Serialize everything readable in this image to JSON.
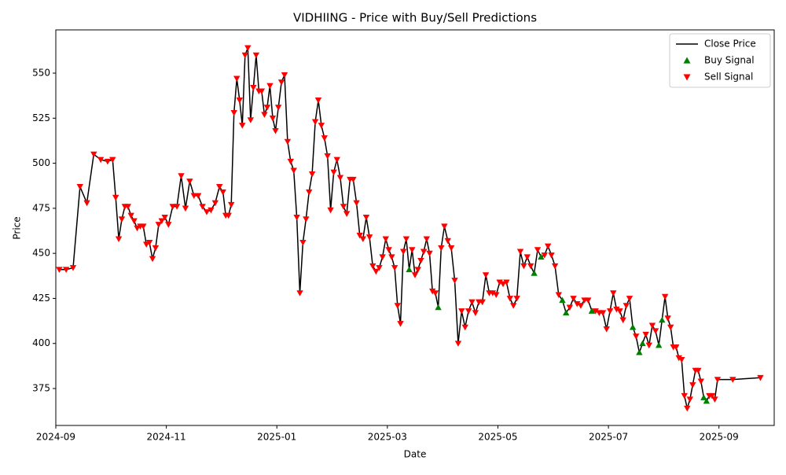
{
  "chart_data": {
    "type": "line",
    "title": "VIDHIING - Price with Buy/Sell Predictions",
    "x_label": "Date",
    "y_label": "Price",
    "x": [
      "2024-09",
      "2024-09",
      "2024-09",
      "2024-09",
      "2024-09",
      "2024-09",
      "2024-09",
      "2024-09",
      "2024-10",
      "2024-10",
      "2024-10",
      "2024-10",
      "2024-10",
      "2024-10",
      "2024-10",
      "2024-10",
      "2024-10",
      "2024-10",
      "2024-10",
      "2024-10",
      "2024-10",
      "2024-10",
      "2024-10",
      "2024-10",
      "2024-10",
      "2024-10",
      "2024-11",
      "2024-11",
      "2024-11",
      "2024-11",
      "2024-11",
      "2024-11",
      "2024-11",
      "2024-11",
      "2024-11",
      "2024-11",
      "2024-11",
      "2024-11",
      "2024-11",
      "2024-12",
      "2024-12",
      "2024-12",
      "2024-12",
      "2024-12",
      "2024-12",
      "2024-12",
      "2024-12",
      "2024-12",
      "2024-12",
      "2024-12",
      "2024-12",
      "2024-12",
      "2024-12",
      "2024-12",
      "2024-12",
      "2024-12",
      "2024-12",
      "2024-12",
      "2024-12",
      "2025-01",
      "2025-01",
      "2025-01",
      "2025-01",
      "2025-01",
      "2025-01",
      "2025-01",
      "2025-01",
      "2025-01",
      "2025-01",
      "2025-01",
      "2025-01",
      "2025-01",
      "2025-01",
      "2025-01",
      "2025-01",
      "2025-01",
      "2025-01",
      "2025-02",
      "2025-02",
      "2025-02",
      "2025-02",
      "2025-02",
      "2025-02",
      "2025-02",
      "2025-02",
      "2025-02",
      "2025-02",
      "2025-02",
      "2025-02",
      "2025-02",
      "2025-02",
      "2025-02",
      "2025-02",
      "2025-02",
      "2025-03",
      "2025-03",
      "2025-03",
      "2025-03",
      "2025-03",
      "2025-03",
      "2025-03",
      "2025-03",
      "2025-03",
      "2025-03",
      "2025-03",
      "2025-03",
      "2025-03",
      "2025-03",
      "2025-03",
      "2025-03",
      "2025-03",
      "2025-03",
      "2025-03",
      "2025-04",
      "2025-04",
      "2025-04",
      "2025-04",
      "2025-04",
      "2025-04",
      "2025-04",
      "2025-04",
      "2025-04",
      "2025-04",
      "2025-04",
      "2025-04",
      "2025-04",
      "2025-04",
      "2025-04",
      "2025-04",
      "2025-05",
      "2025-05",
      "2025-05",
      "2025-05",
      "2025-05",
      "2025-05",
      "2025-05",
      "2025-05",
      "2025-05",
      "2025-05",
      "2025-05",
      "2025-05",
      "2025-05",
      "2025-05",
      "2025-05",
      "2025-05",
      "2025-06",
      "2025-06",
      "2025-06",
      "2025-06",
      "2025-06",
      "2025-06",
      "2025-06",
      "2025-06",
      "2025-06",
      "2025-06",
      "2025-06",
      "2025-06",
      "2025-06",
      "2025-06",
      "2025-06",
      "2025-07",
      "2025-07",
      "2025-07",
      "2025-07",
      "2025-07",
      "2025-07",
      "2025-07",
      "2025-07",
      "2025-07",
      "2025-07",
      "2025-07",
      "2025-07",
      "2025-07",
      "2025-07",
      "2025-07",
      "2025-07",
      "2025-07",
      "2025-08",
      "2025-08",
      "2025-08",
      "2025-08",
      "2025-08",
      "2025-08",
      "2025-08",
      "2025-08",
      "2025-08",
      "2025-08",
      "2025-08",
      "2025-08",
      "2025-08",
      "2025-08",
      "2025-08",
      "2025-08",
      "2025-08",
      "2025-08",
      "2025-08",
      "2025-08",
      "2025-09",
      "2025-09"
    ],
    "series": [
      {
        "name": "Close Price",
        "color": "#000000",
        "values": [
          441,
          441,
          442,
          487,
          478,
          505,
          502,
          501,
          502,
          481,
          458,
          469,
          476,
          476,
          471,
          468,
          464,
          465,
          465,
          455,
          456,
          447,
          453,
          466,
          468,
          470,
          466,
          476,
          476,
          493,
          475,
          490,
          482,
          482,
          476,
          473,
          474,
          478,
          487,
          484,
          471,
          471,
          477,
          528,
          547,
          535,
          521,
          560,
          564,
          524,
          542,
          560,
          540,
          540,
          527,
          531,
          543,
          525,
          518,
          531,
          545,
          549,
          512,
          501,
          496,
          470,
          428,
          456,
          469,
          484,
          494,
          523,
          535,
          521,
          514,
          504,
          474,
          495,
          502,
          492,
          476,
          472,
          491,
          491,
          478,
          460,
          458,
          470,
          459,
          443,
          440,
          442,
          448,
          458,
          452,
          448,
          442,
          421,
          411,
          451,
          458,
          441,
          452,
          438,
          441,
          446,
          451,
          458,
          450,
          429,
          428,
          420,
          453,
          465,
          457,
          453,
          435,
          400,
          418,
          409,
          418,
          423,
          417,
          423,
          423,
          438,
          428,
          428,
          427,
          434,
          433,
          434,
          425,
          421,
          425,
          451,
          443,
          448,
          443,
          439,
          452,
          448,
          449,
          454,
          449,
          443,
          427,
          424,
          417,
          420,
          425,
          422,
          421,
          424,
          424,
          418,
          418,
          417,
          417,
          408,
          418,
          428,
          419,
          418,
          413,
          421,
          425,
          409,
          404,
          395,
          400,
          405,
          399,
          410,
          407,
          399,
          413,
          426,
          414,
          409,
          398,
          398,
          392,
          391,
          371,
          364,
          369,
          377,
          385,
          385,
          379,
          370,
          368,
          371,
          371,
          369,
          380,
          380,
          381
        ]
      },
      {
        "name": "Buy Signal",
        "color": "green",
        "marker": "up",
        "values": [
          null,
          null,
          null,
          null,
          null,
          null,
          null,
          null,
          null,
          null,
          null,
          null,
          null,
          null,
          null,
          null,
          null,
          null,
          null,
          null,
          null,
          null,
          null,
          null,
          null,
          null,
          null,
          null,
          null,
          null,
          null,
          null,
          null,
          null,
          null,
          null,
          null,
          null,
          null,
          null,
          null,
          null,
          null,
          null,
          null,
          null,
          null,
          null,
          null,
          null,
          null,
          null,
          null,
          null,
          null,
          null,
          null,
          null,
          null,
          null,
          null,
          null,
          null,
          null,
          null,
          null,
          null,
          null,
          null,
          null,
          null,
          null,
          null,
          null,
          null,
          null,
          null,
          null,
          null,
          null,
          null,
          null,
          null,
          null,
          null,
          null,
          null,
          null,
          null,
          null,
          null,
          null,
          null,
          null,
          null,
          null,
          null,
          null,
          null,
          null,
          null,
          441,
          null,
          null,
          null,
          null,
          null,
          null,
          null,
          null,
          null,
          420,
          null,
          null,
          null,
          null,
          null,
          null,
          null,
          null,
          null,
          null,
          null,
          null,
          null,
          null,
          null,
          null,
          null,
          null,
          null,
          null,
          null,
          null,
          null,
          null,
          null,
          null,
          null,
          439,
          null,
          448,
          null,
          null,
          null,
          null,
          null,
          424,
          417,
          null,
          null,
          null,
          null,
          null,
          null,
          418,
          null,
          null,
          null,
          null,
          null,
          null,
          null,
          null,
          null,
          null,
          null,
          409,
          null,
          395,
          400,
          null,
          null,
          null,
          null,
          399,
          413,
          null,
          null,
          null,
          null,
          null,
          null,
          null,
          null,
          null,
          null,
          null,
          null,
          null,
          null,
          370,
          368,
          null,
          null,
          null,
          null,
          null,
          null
        ]
      },
      {
        "name": "Sell Signal",
        "color": "red",
        "marker": "down",
        "values": [
          441,
          441,
          442,
          487,
          478,
          505,
          502,
          501,
          502,
          481,
          458,
          469,
          476,
          476,
          471,
          468,
          464,
          465,
          465,
          455,
          456,
          447,
          453,
          466,
          468,
          470,
          466,
          476,
          476,
          493,
          475,
          490,
          482,
          482,
          476,
          473,
          474,
          478,
          487,
          484,
          471,
          471,
          477,
          528,
          547,
          535,
          521,
          560,
          564,
          524,
          542,
          560,
          540,
          540,
          527,
          531,
          543,
          525,
          518,
          531,
          545,
          549,
          512,
          501,
          496,
          470,
          428,
          456,
          469,
          484,
          494,
          523,
          535,
          521,
          514,
          504,
          474,
          495,
          502,
          492,
          476,
          472,
          491,
          491,
          478,
          460,
          458,
          470,
          459,
          443,
          440,
          442,
          448,
          458,
          452,
          448,
          442,
          421,
          411,
          451,
          458,
          null,
          452,
          438,
          441,
          446,
          451,
          458,
          450,
          429,
          428,
          null,
          453,
          465,
          457,
          453,
          435,
          400,
          418,
          409,
          418,
          423,
          417,
          423,
          423,
          438,
          428,
          428,
          427,
          434,
          433,
          434,
          425,
          421,
          425,
          451,
          443,
          448,
          443,
          null,
          452,
          null,
          449,
          454,
          449,
          443,
          427,
          null,
          null,
          420,
          425,
          422,
          421,
          424,
          424,
          null,
          418,
          417,
          417,
          408,
          418,
          428,
          419,
          418,
          413,
          421,
          425,
          null,
          404,
          null,
          null,
          405,
          399,
          410,
          407,
          null,
          null,
          426,
          414,
          409,
          398,
          398,
          392,
          391,
          371,
          364,
          369,
          377,
          385,
          385,
          379,
          null,
          null,
          371,
          371,
          369,
          380,
          380,
          381
        ]
      }
    ],
    "xticks": [
      "2024-09",
      "2024-11",
      "2025-01",
      "2025-03",
      "2025-05",
      "2025-07",
      "2025-09"
    ],
    "ylim": [
      354.5,
      574
    ],
    "yticks": [
      375,
      400,
      425,
      450,
      475,
      500,
      525,
      550
    ],
    "legend": "upper right"
  }
}
